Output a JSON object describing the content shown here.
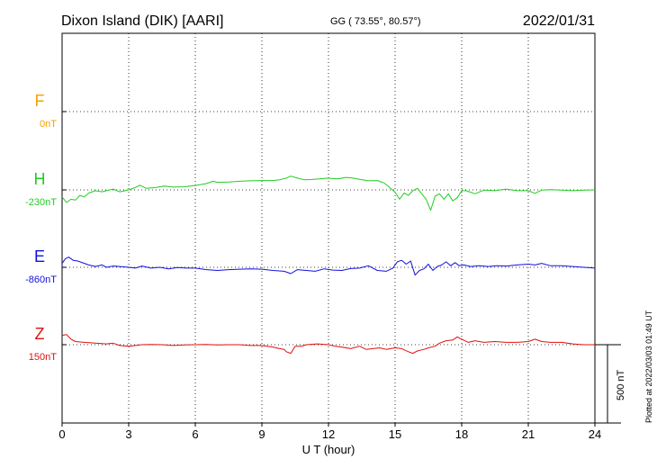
{
  "header": {
    "station": "Dixon Island (DIK)  [AARI]",
    "coords": "GG ( 73.55°,  80.57°)",
    "date": "2022/01/31"
  },
  "plotted_note": "Plotted at 2022/03/03 01:49 UT",
  "chart_data": {
    "type": "line",
    "xlabel": "U T (hour)",
    "xlim": [
      0,
      24
    ],
    "xticks": [
      "0",
      "3",
      "6",
      "9",
      "12",
      "15",
      "18",
      "21",
      "24"
    ],
    "scale_label": "500 nT",
    "scale_nT": 500,
    "colors": {
      "F": "#f5a000",
      "H": "#22cc22",
      "E": "#1010dd",
      "Z": "#e01010",
      "axis": "#000000"
    },
    "series": [
      {
        "name": "F",
        "baseline_label": "0nT",
        "unit": "nT",
        "points": []
      },
      {
        "name": "H",
        "baseline_label": "-230nT",
        "unit": "nT",
        "points": [
          [
            0,
            -45
          ],
          [
            0.2,
            -80
          ],
          [
            0.4,
            -60
          ],
          [
            0.6,
            -65
          ],
          [
            0.8,
            -35
          ],
          [
            1,
            -45
          ],
          [
            1.2,
            -20
          ],
          [
            1.5,
            -5
          ],
          [
            1.8,
            -12
          ],
          [
            2,
            -5
          ],
          [
            2.3,
            5
          ],
          [
            2.6,
            -12
          ],
          [
            3,
            0
          ],
          [
            3.3,
            15
          ],
          [
            3.5,
            30
          ],
          [
            3.8,
            10
          ],
          [
            4.2,
            15
          ],
          [
            4.6,
            25
          ],
          [
            5,
            18
          ],
          [
            5.5,
            20
          ],
          [
            6,
            28
          ],
          [
            6.5,
            40
          ],
          [
            6.8,
            55
          ],
          [
            7,
            48
          ],
          [
            7.5,
            50
          ],
          [
            8,
            55
          ],
          [
            8.5,
            58
          ],
          [
            9,
            60
          ],
          [
            9.5,
            60
          ],
          [
            9.8,
            65
          ],
          [
            10.1,
            75
          ],
          [
            10.3,
            88
          ],
          [
            10.6,
            75
          ],
          [
            10.9,
            65
          ],
          [
            11.2,
            66
          ],
          [
            11.6,
            70
          ],
          [
            12,
            75
          ],
          [
            12.4,
            70
          ],
          [
            12.8,
            80
          ],
          [
            13.1,
            75
          ],
          [
            13.4,
            68
          ],
          [
            13.8,
            58
          ],
          [
            14.2,
            60
          ],
          [
            14.5,
            45
          ],
          [
            14.8,
            10
          ],
          [
            15,
            -15
          ],
          [
            15.2,
            -60
          ],
          [
            15.4,
            -20
          ],
          [
            15.6,
            -35
          ],
          [
            15.8,
            -5
          ],
          [
            16,
            10
          ],
          [
            16.2,
            -25
          ],
          [
            16.4,
            -60
          ],
          [
            16.6,
            -130
          ],
          [
            16.8,
            -40
          ],
          [
            17,
            -25
          ],
          [
            17.2,
            -60
          ],
          [
            17.4,
            -25
          ],
          [
            17.6,
            -70
          ],
          [
            17.8,
            -50
          ],
          [
            18,
            -5
          ],
          [
            18.2,
            -5
          ],
          [
            18.6,
            -25
          ],
          [
            19,
            -2
          ],
          [
            19.5,
            -5
          ],
          [
            20,
            5
          ],
          [
            20.5,
            -5
          ],
          [
            21,
            -5
          ],
          [
            21.3,
            -22
          ],
          [
            21.6,
            -2
          ],
          [
            22,
            2
          ],
          [
            22.5,
            -2
          ],
          [
            23,
            -5
          ],
          [
            23.5,
            -2
          ],
          [
            24,
            0
          ]
        ]
      },
      {
        "name": "E",
        "baseline_label": "-860nT",
        "unit": "nT",
        "points": [
          [
            0,
            25
          ],
          [
            0.15,
            55
          ],
          [
            0.3,
            65
          ],
          [
            0.5,
            45
          ],
          [
            0.7,
            40
          ],
          [
            1,
            25
          ],
          [
            1.2,
            15
          ],
          [
            1.5,
            5
          ],
          [
            1.8,
            15
          ],
          [
            2,
            0
          ],
          [
            2.3,
            8
          ],
          [
            2.6,
            5
          ],
          [
            3,
            0
          ],
          [
            3.3,
            -5
          ],
          [
            3.6,
            8
          ],
          [
            4,
            -5
          ],
          [
            4.4,
            0
          ],
          [
            4.8,
            -10
          ],
          [
            5.2,
            -2
          ],
          [
            5.6,
            -5
          ],
          [
            6,
            -5
          ],
          [
            6.5,
            -15
          ],
          [
            7,
            -20
          ],
          [
            7.5,
            -15
          ],
          [
            8,
            -12
          ],
          [
            8.5,
            -10
          ],
          [
            9,
            -12
          ],
          [
            9.5,
            -20
          ],
          [
            10,
            -25
          ],
          [
            10.3,
            -40
          ],
          [
            10.6,
            -15
          ],
          [
            11,
            -20
          ],
          [
            11.4,
            -25
          ],
          [
            11.8,
            -10
          ],
          [
            12.2,
            -18
          ],
          [
            12.6,
            -20
          ],
          [
            13,
            -8
          ],
          [
            13.4,
            -5
          ],
          [
            13.8,
            10
          ],
          [
            14.2,
            -20
          ],
          [
            14.6,
            -25
          ],
          [
            14.9,
            -5
          ],
          [
            15.1,
            35
          ],
          [
            15.3,
            45
          ],
          [
            15.5,
            20
          ],
          [
            15.7,
            40
          ],
          [
            15.9,
            -50
          ],
          [
            16.1,
            -20
          ],
          [
            16.3,
            -10
          ],
          [
            16.5,
            20
          ],
          [
            16.7,
            -20
          ],
          [
            16.9,
            5
          ],
          [
            17.1,
            15
          ],
          [
            17.3,
            35
          ],
          [
            17.5,
            10
          ],
          [
            17.7,
            30
          ],
          [
            17.9,
            10
          ],
          [
            18.1,
            15
          ],
          [
            18.4,
            5
          ],
          [
            18.8,
            10
          ],
          [
            19.2,
            5
          ],
          [
            19.6,
            10
          ],
          [
            20,
            8
          ],
          [
            20.5,
            15
          ],
          [
            21,
            20
          ],
          [
            21.3,
            15
          ],
          [
            21.6,
            25
          ],
          [
            22,
            10
          ],
          [
            22.5,
            10
          ],
          [
            23,
            5
          ],
          [
            23.5,
            0
          ],
          [
            24,
            -5
          ]
        ]
      },
      {
        "name": "Z",
        "baseline_label": "150nT",
        "unit": "nT",
        "points": [
          [
            0,
            60
          ],
          [
            0.2,
            65
          ],
          [
            0.4,
            35
          ],
          [
            0.6,
            20
          ],
          [
            1,
            15
          ],
          [
            1.5,
            10
          ],
          [
            2,
            5
          ],
          [
            2.3,
            10
          ],
          [
            2.6,
            -5
          ],
          [
            3,
            -10
          ],
          [
            3.3,
            -5
          ],
          [
            3.6,
            0
          ],
          [
            4,
            2
          ],
          [
            4.5,
            0
          ],
          [
            5,
            -5
          ],
          [
            5.5,
            -2
          ],
          [
            6,
            0
          ],
          [
            6.5,
            2
          ],
          [
            7,
            -2
          ],
          [
            7.5,
            0
          ],
          [
            8,
            0
          ],
          [
            8.5,
            -5
          ],
          [
            9,
            -5
          ],
          [
            9.5,
            -15
          ],
          [
            9.8,
            -25
          ],
          [
            10,
            -30
          ],
          [
            10.1,
            -45
          ],
          [
            10.3,
            -55
          ],
          [
            10.5,
            -10
          ],
          [
            10.8,
            -10
          ],
          [
            11,
            0
          ],
          [
            11.5,
            5
          ],
          [
            12,
            0
          ],
          [
            12.3,
            -10
          ],
          [
            12.6,
            -15
          ],
          [
            13,
            -25
          ],
          [
            13.4,
            -10
          ],
          [
            13.7,
            -30
          ],
          [
            14,
            -25
          ],
          [
            14.3,
            -20
          ],
          [
            14.6,
            -30
          ],
          [
            15,
            -20
          ],
          [
            15.3,
            -25
          ],
          [
            15.6,
            -45
          ],
          [
            15.8,
            -55
          ],
          [
            16,
            -40
          ],
          [
            16.3,
            -30
          ],
          [
            16.5,
            -20
          ],
          [
            16.8,
            -10
          ],
          [
            17,
            10
          ],
          [
            17.3,
            25
          ],
          [
            17.6,
            30
          ],
          [
            17.8,
            50
          ],
          [
            18,
            35
          ],
          [
            18.3,
            15
          ],
          [
            18.6,
            25
          ],
          [
            19,
            15
          ],
          [
            19.5,
            20
          ],
          [
            20,
            15
          ],
          [
            20.5,
            15
          ],
          [
            21,
            20
          ],
          [
            21.3,
            35
          ],
          [
            21.6,
            20
          ],
          [
            22,
            15
          ],
          [
            22.5,
            15
          ],
          [
            23,
            5
          ],
          [
            23.5,
            0
          ],
          [
            24,
            0
          ]
        ]
      }
    ]
  }
}
